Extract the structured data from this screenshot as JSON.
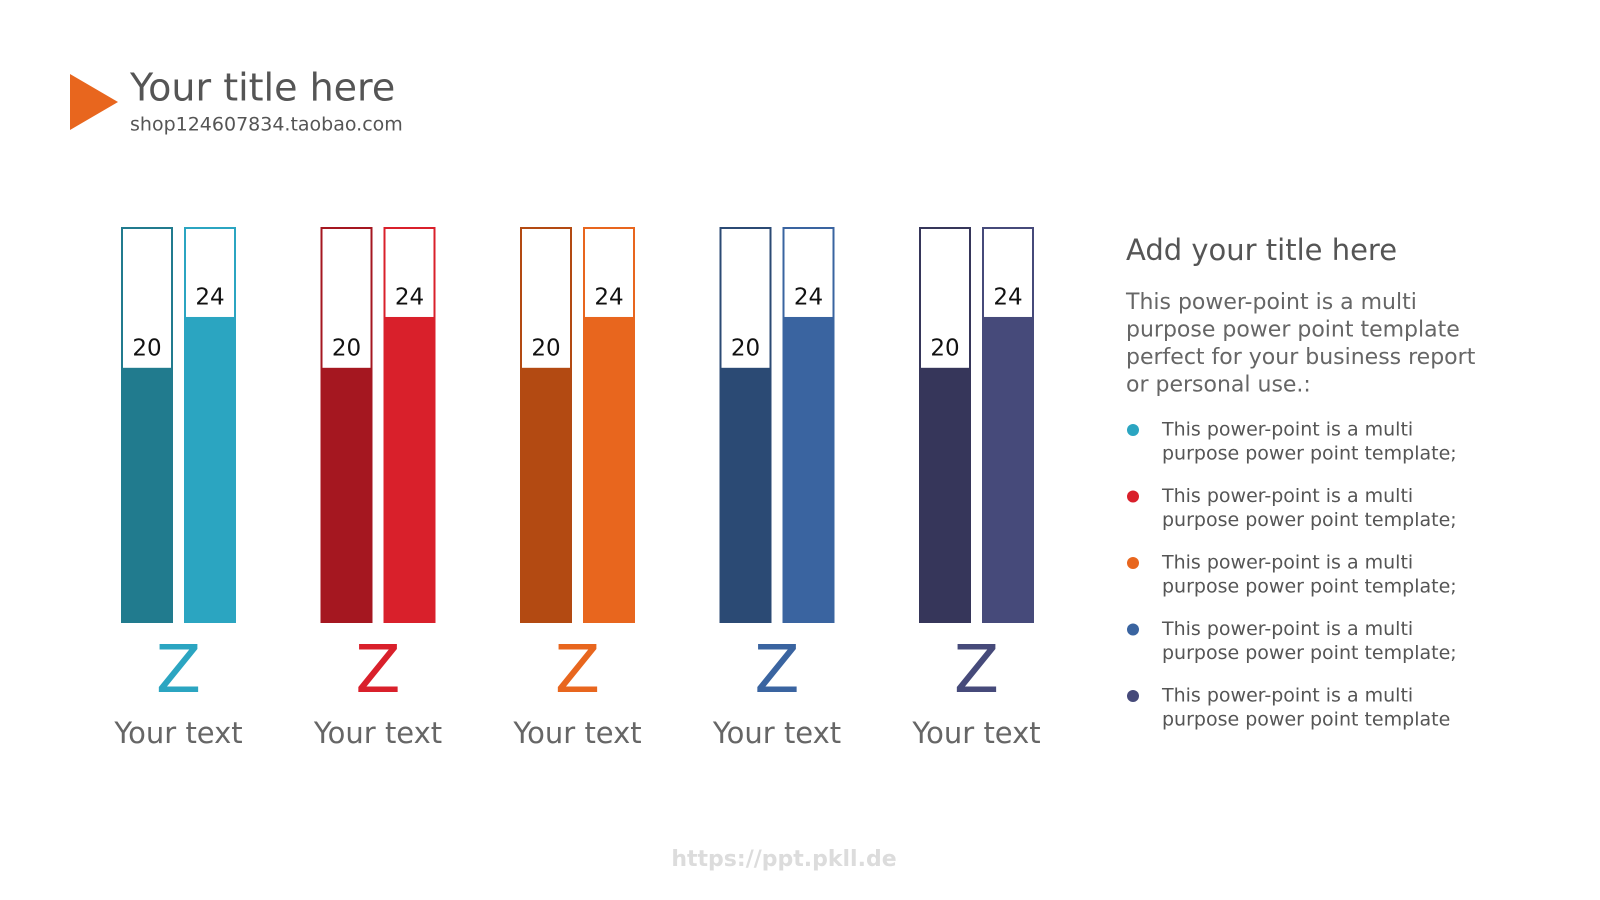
{
  "header": {
    "title": "Your title here",
    "subtitle": "shop124607834.taobao.com"
  },
  "chart_data": {
    "type": "bar",
    "categories": [
      "Your text",
      "Your text",
      "Your text",
      "Your text",
      "Your text"
    ],
    "category_icons": [
      "Z",
      "Z",
      "Z",
      "Z",
      "Z"
    ],
    "series": [
      {
        "values": [
          20,
          20,
          20,
          20,
          20
        ],
        "colors": [
          "#217b8e",
          "#a51720",
          "#b34a12",
          "#2b4a74",
          "#36365a"
        ]
      },
      {
        "values": [
          24,
          24,
          24,
          24,
          24
        ],
        "colors": [
          "#2ba5c1",
          "#d9202b",
          "#e8661e",
          "#3a64a0",
          "#464a7a"
        ]
      }
    ],
    "ylim": [
      0,
      31
    ]
  },
  "sidebar": {
    "title": "Add your title here",
    "text": [
      "This power-point is a multi",
      "purpose power point template",
      "perfect for your business report",
      "or personal use.:"
    ],
    "bullets": [
      [
        "This power-point is a multi",
        "purpose power point template;"
      ],
      [
        "This power-point is a multi",
        "purpose power point template;"
      ],
      [
        "This power-point is a multi",
        "purpose power point template;"
      ],
      [
        "This power-point is a multi",
        "purpose power point template;"
      ],
      [
        "This power-point is a multi",
        "purpose power point template"
      ]
    ],
    "bullet_colors": [
      "#2ba5c1",
      "#d9202b",
      "#e8661e",
      "#3a64a0",
      "#464a7a"
    ]
  },
  "footer": {
    "watermark": "https://ppt.pkll.de"
  }
}
